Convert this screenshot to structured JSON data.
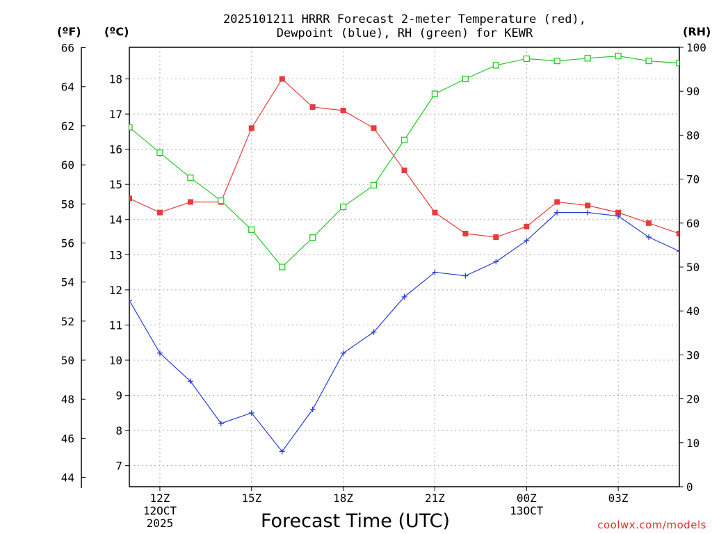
{
  "title_line1": "2025101211 HRRR Forecast 2-meter Temperature (red),",
  "title_line2": "Dewpoint (blue), RH (green) for KEWR",
  "unit_f": "(ºF)",
  "unit_c": "(ºC)",
  "unit_rh": "(RH)",
  "credit": "coolwx.com/models",
  "chart_data": {
    "type": "line",
    "xlabel": "Forecast Time (UTC)",
    "x_hours": [
      11,
      12,
      13,
      14,
      15,
      16,
      17,
      18,
      19,
      20,
      21,
      22,
      23,
      24,
      25,
      26,
      27,
      28,
      29
    ],
    "xlim": [
      11,
      29
    ],
    "x_ticks": [
      {
        "hour": 12,
        "lines": [
          "12Z",
          "12OCT",
          "2025"
        ]
      },
      {
        "hour": 15,
        "lines": [
          "15Z"
        ]
      },
      {
        "hour": 18,
        "lines": [
          "18Z"
        ]
      },
      {
        "hour": 21,
        "lines": [
          "21Z"
        ]
      },
      {
        "hour": 24,
        "lines": [
          "00Z",
          "13OCT"
        ]
      },
      {
        "hour": 27,
        "lines": [
          "03Z"
        ]
      }
    ],
    "ylim_c": [
      6.4,
      18.9
    ],
    "y_ticks_c": [
      7,
      8,
      9,
      10,
      11,
      12,
      13,
      14,
      15,
      16,
      17,
      18
    ],
    "ylim_f": [
      43.52,
      66.02
    ],
    "y_ticks_f": [
      44,
      46,
      48,
      50,
      52,
      54,
      56,
      58,
      60,
      62,
      64,
      66
    ],
    "ylim_rh": [
      0,
      100
    ],
    "y_ticks_rh": [
      0,
      10,
      20,
      30,
      40,
      50,
      60,
      70,
      80,
      90,
      100
    ],
    "series": [
      {
        "name": "Temperature",
        "axis": "c",
        "color": "#e83a3a",
        "marker": "filled-square",
        "values": [
          14.6,
          14.2,
          14.5,
          14.5,
          16.6,
          18.0,
          17.2,
          17.1,
          16.6,
          15.4,
          14.2,
          13.6,
          13.5,
          13.8,
          14.5,
          14.4,
          14.2,
          13.9,
          13.6
        ]
      },
      {
        "name": "Dewpoint",
        "axis": "c",
        "color": "#2a3ed6",
        "marker": "plus",
        "values": [
          11.7,
          10.2,
          9.4,
          8.2,
          8.5,
          7.4,
          8.6,
          10.2,
          10.8,
          11.8,
          12.5,
          12.4,
          12.8,
          13.4,
          14.2,
          14.2,
          14.1,
          13.5,
          13.1
        ]
      },
      {
        "name": "RH",
        "axis": "rh",
        "color": "#22cc22",
        "marker": "open-square",
        "values": [
          81.8,
          76.0,
          70.3,
          65.1,
          58.5,
          50.0,
          56.7,
          63.7,
          68.6,
          78.9,
          89.4,
          92.8,
          95.9,
          97.4,
          96.9,
          97.5,
          98.0,
          96.9,
          96.4
        ]
      }
    ]
  }
}
